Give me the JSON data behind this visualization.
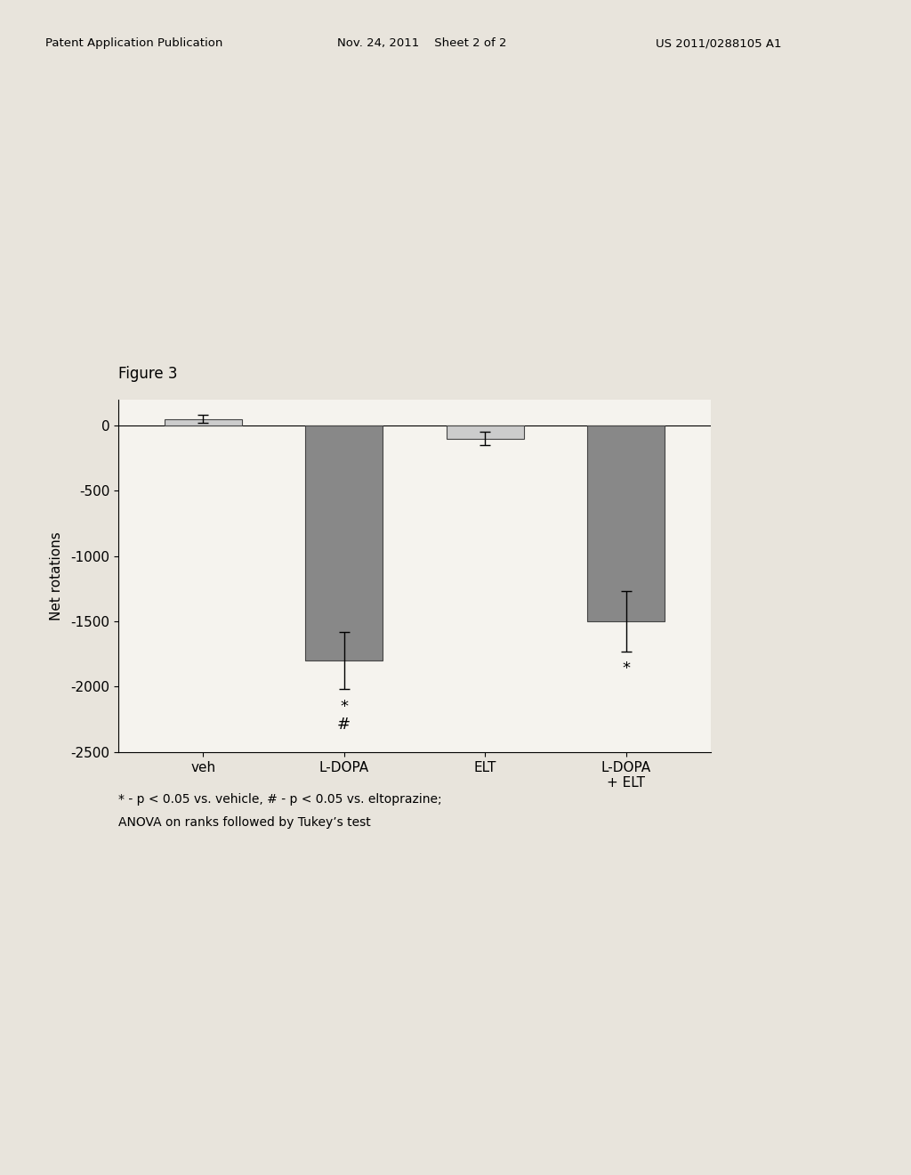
{
  "figure_label": "Figure 3",
  "categories": [
    "veh",
    "L-DOPA",
    "ELT",
    "L-DOPA\n+ ELT"
  ],
  "values": [
    50,
    -1800,
    -100,
    -1500
  ],
  "errors": [
    30,
    220,
    50,
    230
  ],
  "bar_colors": [
    "#cccccc",
    "#888888",
    "#cccccc",
    "#888888"
  ],
  "bar_edgecolors": [
    "#444444",
    "#444444",
    "#444444",
    "#444444"
  ],
  "ylabel": "Net rotations",
  "ylim": [
    -2500,
    200
  ],
  "yticks": [
    0,
    -500,
    -1000,
    -1500,
    -2000,
    -2500
  ],
  "footnote_line1": "* - p < 0.05 vs. vehicle, # - p < 0.05 vs. eltoprazine;",
  "footnote_line2": "ANOVA on ranks followed by Tukey’s test",
  "page_background": "#e8e4dc",
  "chart_background": "#f5f3ee",
  "bar_width": 0.55,
  "header_left": "Patent Application Publication",
  "header_mid": "Nov. 24, 2011    Sheet 2 of 2",
  "header_right": "US 2011/0288105 A1"
}
